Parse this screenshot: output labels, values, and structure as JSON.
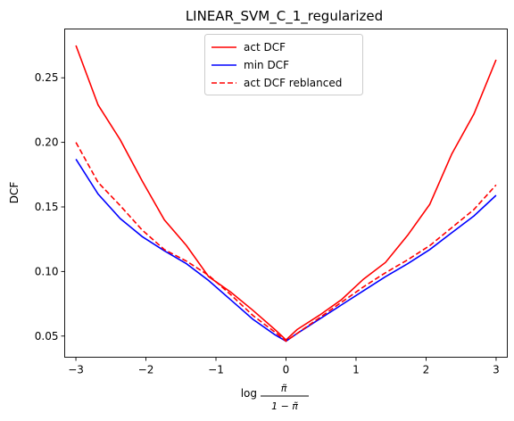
{
  "chart_data": {
    "type": "line",
    "title": "LINEAR_SVM_C_1_regularized",
    "ylabel": "DCF",
    "xlabel_parts": {
      "prefix": "log",
      "numerator": "π̃",
      "denominator": "1 − π̃"
    },
    "xlim": [
      -3.16,
      3.16
    ],
    "ylim": [
      0.0336,
      0.2878
    ],
    "xticks": [
      -3,
      -2,
      -1,
      0,
      1,
      2,
      3
    ],
    "xtick_labels": [
      "−3",
      "−2",
      "−1",
      "0",
      "1",
      "2",
      "3"
    ],
    "yticks": [
      0.05,
      0.1,
      0.15,
      0.2,
      0.25
    ],
    "ytick_labels": [
      "0.05",
      "0.10",
      "0.15",
      "0.20",
      "0.25"
    ],
    "grid": false,
    "legend_position": "top-center",
    "x": [
      -3.0,
      -2.684,
      -2.368,
      -2.053,
      -1.737,
      -1.421,
      -1.105,
      -0.789,
      -0.474,
      -0.158,
      0.0,
      0.158,
      0.474,
      0.789,
      1.105,
      1.421,
      1.737,
      2.053,
      2.368,
      2.684,
      3.0
    ],
    "series": [
      {
        "name": "act DCF",
        "color": "#ff0000",
        "style": "solid",
        "values": [
          0.275,
          0.229,
          0.202,
          0.17,
          0.14,
          0.12,
          0.096,
          0.084,
          0.07,
          0.055,
          0.047,
          0.055,
          0.066,
          0.078,
          0.094,
          0.107,
          0.128,
          0.152,
          0.191,
          0.222,
          0.264
        ]
      },
      {
        "name": "min DCF",
        "color": "#0000ff",
        "style": "solid",
        "values": [
          0.187,
          0.16,
          0.141,
          0.127,
          0.116,
          0.106,
          0.093,
          0.078,
          0.063,
          0.051,
          0.046,
          0.052,
          0.063,
          0.074,
          0.085,
          0.096,
          0.106,
          0.117,
          0.13,
          0.143,
          0.159
        ]
      },
      {
        "name": "act DCF reblanced",
        "color": "#ff0000",
        "style": "dashed",
        "values": [
          0.2,
          0.169,
          0.151,
          0.132,
          0.117,
          0.108,
          0.097,
          0.082,
          0.066,
          0.053,
          0.046,
          0.052,
          0.064,
          0.076,
          0.088,
          0.099,
          0.109,
          0.12,
          0.134,
          0.148,
          0.167
        ]
      }
    ]
  }
}
